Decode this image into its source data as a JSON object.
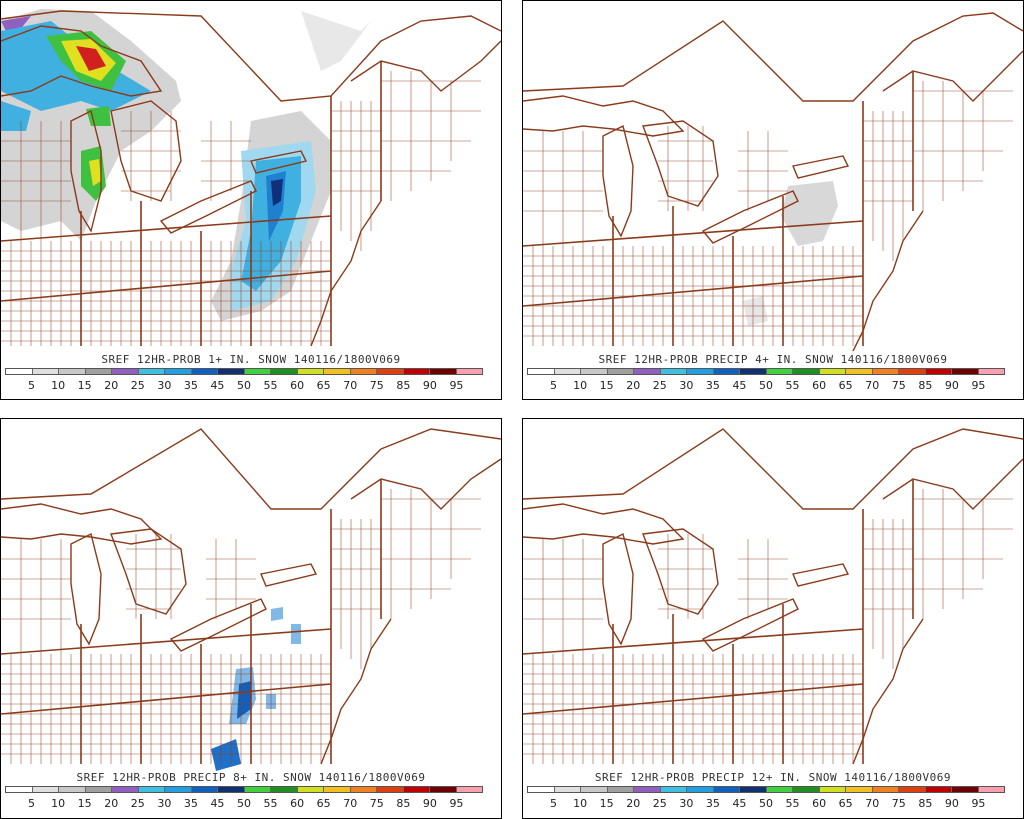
{
  "panels": [
    {
      "title": "SREF 12HR-PROB 1+ IN. SNOW 140116/1800V069"
    },
    {
      "title": "SREF 12HR-PROB PRECIP 4+ IN. SNOW 140116/1800V069"
    },
    {
      "title": "SREF 12HR-PROB PRECIP 8+ IN. SNOW 140116/1800V069"
    },
    {
      "title": "SREF 12HR-PROB PRECIP 12+ IN. SNOW 140116/1800V069"
    }
  ],
  "scale": {
    "labels": [
      "5",
      "10",
      "15",
      "20",
      "25",
      "30",
      "35",
      "45",
      "50",
      "55",
      "60",
      "65",
      "70",
      "75",
      "85",
      "90",
      "95"
    ],
    "colors": [
      "#ffffff",
      "#e0e0e0",
      "#c8c8c8",
      "#a0a0a0",
      "#9060c0",
      "#40c0e0",
      "#20a0e0",
      "#1060c0",
      "#103070",
      "#40d040",
      "#209020",
      "#d0e020",
      "#f0c020",
      "#f08020",
      "#e04010",
      "#c00000",
      "#700000",
      "#f8a0b0"
    ]
  },
  "colors": {
    "border": "#8b3a1a",
    "gray_light": "#d8d8d8",
    "gray_mid": "#b8b8b8",
    "cyan": "#40c0e0",
    "blue": "#1060c0",
    "green": "#40c040",
    "yellow": "#e0e020",
    "red": "#d02020"
  }
}
